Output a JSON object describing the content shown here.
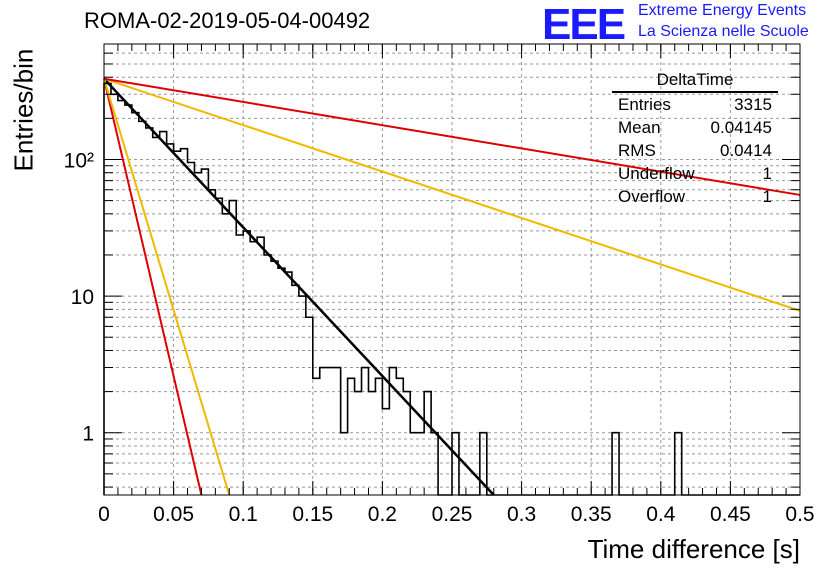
{
  "header": {
    "title": "ROMA-02-2019-05-04-00492",
    "logo_mark": "EEE",
    "logo_line1": "Extreme Energy Events",
    "logo_line2": "La Scienza nelle Scuole"
  },
  "stats": {
    "name": "DeltaTime",
    "rows": [
      {
        "label": "Entries",
        "value": "3315"
      },
      {
        "label": "Mean",
        "value": "0.04145"
      },
      {
        "label": "RMS",
        "value": "0.0414"
      },
      {
        "label": "Underflow",
        "value": "1"
      },
      {
        "label": "Overflow",
        "value": "1"
      }
    ]
  },
  "chart_data": {
    "type": "histogram",
    "title": "ROMA-02-2019-05-04-00492",
    "xlabel": "Time difference [s]",
    "ylabel": "Entries/bin",
    "xlim": [
      0,
      0.5
    ],
    "ylim": [
      0.35,
      700
    ],
    "log_y": true,
    "grid": true,
    "x_ticks": [
      "0",
      "0.05",
      "0.1",
      "0.15",
      "0.2",
      "0.25",
      "0.3",
      "0.35",
      "0.4",
      "0.45",
      "0.5"
    ],
    "y_ticks": [
      {
        "value": 1,
        "label": "1"
      },
      {
        "value": 10,
        "label": "10"
      },
      {
        "value": 100,
        "label": "10²"
      }
    ],
    "bin_width": 0.005,
    "histogram": {
      "name": "DeltaTime",
      "color": "#000000",
      "values": [
        360,
        300,
        270,
        250,
        220,
        190,
        170,
        145,
        160,
        130,
        115,
        120,
        95,
        80,
        85,
        60,
        52,
        40,
        50,
        28,
        30,
        25,
        27,
        20,
        18,
        16,
        15,
        12,
        10,
        7,
        2.5,
        3,
        3,
        3,
        1,
        2.5,
        2,
        3,
        2,
        2.5,
        1.5,
        3,
        2.5,
        2,
        1,
        1,
        2,
        1,
        0.35,
        0.35,
        1,
        0.35,
        0.35,
        0.35,
        1,
        0.35,
        0.35,
        0.35,
        0.35,
        0.35,
        0.35,
        0.35,
        0.35,
        0.35,
        0.35,
        0.35,
        0.35,
        0.35,
        0.35,
        0.35,
        0.35,
        0.35,
        0.35,
        1,
        0.35,
        0.35,
        0.35,
        0.35,
        0.35,
        0.35,
        0.35,
        0.35,
        1,
        0.35,
        0.35,
        0.35,
        0.35,
        0.35,
        0.35,
        0.35,
        0.35,
        0.35,
        0.35,
        0.35,
        0.35,
        0.35,
        0.35,
        0.35,
        0.35,
        0.35
      ]
    },
    "curves": [
      {
        "name": "fit",
        "color": "#000000",
        "points": [
          [
            0,
            390
          ],
          [
            0.28,
            0.35
          ]
        ]
      },
      {
        "name": "red-steep",
        "color": "#dd0000",
        "points": [
          [
            0,
            390
          ],
          [
            0.07,
            0.35
          ]
        ]
      },
      {
        "name": "yellow-steep",
        "color": "#f0b800",
        "points": [
          [
            0,
            390
          ],
          [
            0.09,
            0.35
          ]
        ]
      },
      {
        "name": "yellow-shallow",
        "color": "#f0b800",
        "points": [
          [
            0,
            390
          ],
          [
            0.5,
            7.8
          ]
        ]
      },
      {
        "name": "red-shallow",
        "color": "#dd0000",
        "points": [
          [
            0,
            390
          ],
          [
            0.5,
            55
          ]
        ]
      }
    ]
  }
}
